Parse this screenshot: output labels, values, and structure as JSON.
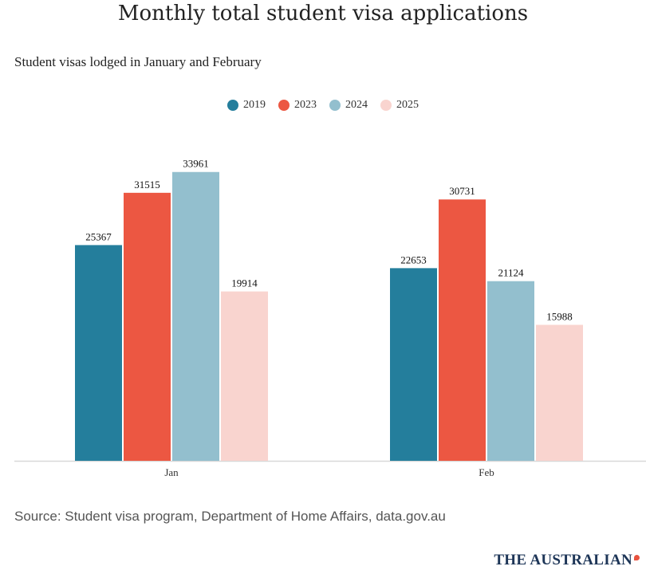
{
  "chart_data": {
    "type": "bar",
    "title": "Monthly total student visa applications",
    "subtitle": "Student visas lodged in January and February",
    "categories": [
      "Jan",
      "Feb"
    ],
    "series": [
      {
        "name": "2019",
        "color": "#247e9c",
        "values": [
          25367,
          22653
        ]
      },
      {
        "name": "2023",
        "color": "#ec5742",
        "values": [
          31515,
          30731
        ]
      },
      {
        "name": "2024",
        "color": "#93bfce",
        "values": [
          33961,
          21124
        ]
      },
      {
        "name": "2025",
        "color": "#f9d4cf",
        "values": [
          19914,
          15988
        ]
      }
    ],
    "ylim": [
      0,
      36000
    ],
    "xlabel": "",
    "ylabel": "",
    "grid": false,
    "legend_placement": "top-center"
  },
  "footer": {
    "source": "Source: Student visa program, Department of Home Affairs, data.gov.au",
    "brand": "THE AUSTRALIAN"
  }
}
